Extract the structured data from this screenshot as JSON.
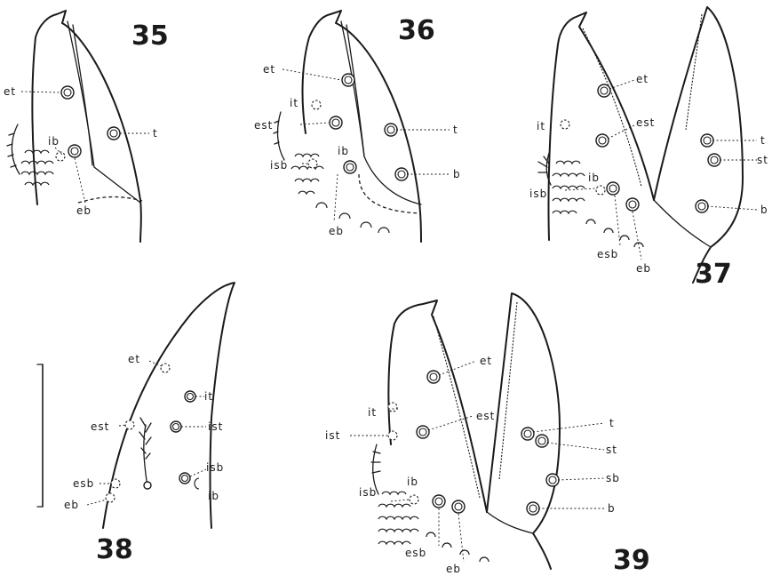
{
  "figures": [
    {
      "number": "35",
      "labels": [
        "et",
        "ib",
        "t",
        "eb"
      ]
    },
    {
      "number": "36",
      "labels": [
        "et",
        "it",
        "est",
        "ib",
        "isb",
        "t",
        "b",
        "eb"
      ]
    },
    {
      "number": "37",
      "labels": [
        "et",
        "it",
        "est",
        "t",
        "st",
        "ib",
        "isb",
        "b",
        "esb",
        "eb"
      ]
    },
    {
      "number": "38",
      "labels": [
        "et",
        "it",
        "est",
        "ist",
        "isb",
        "esb",
        "ib",
        "eb"
      ]
    },
    {
      "number": "39",
      "labels": [
        "et",
        "it",
        "est",
        "ist",
        "t",
        "st",
        "sb",
        "ib",
        "isb",
        "b",
        "esb",
        "eb"
      ]
    }
  ],
  "scale_bar": {
    "shown": true
  }
}
